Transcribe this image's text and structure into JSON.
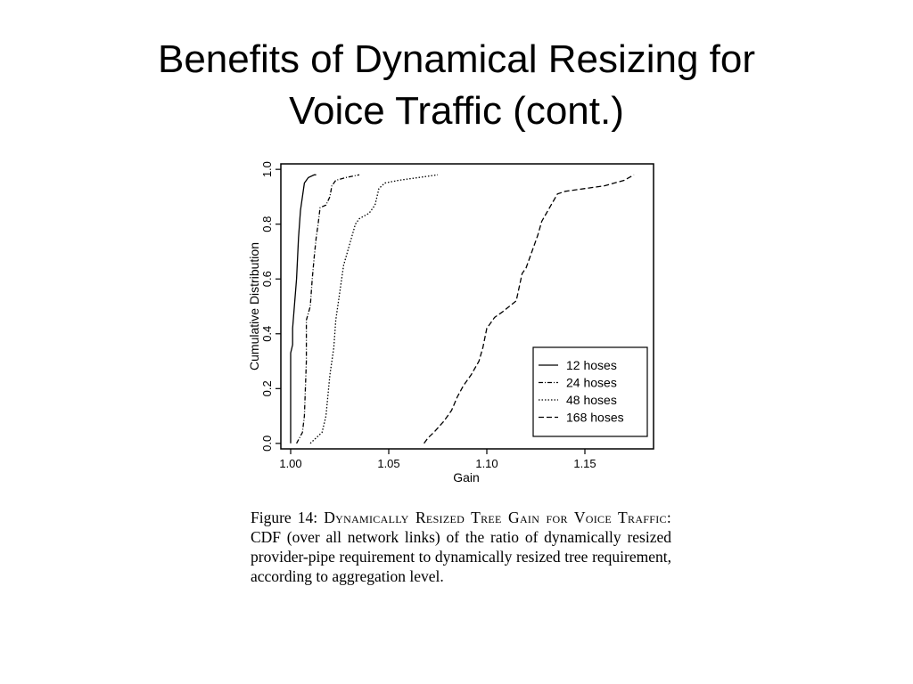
{
  "slide": {
    "title_line1": "Benefits of Dynamical Resizing for",
    "title_line2": "Voice Traffic (cont.)"
  },
  "caption": {
    "label": "Figure 14:",
    "heading": "Dynamically Resized Tree Gain for Voice Traffic:",
    "body": "CDF (over all network links) of the ratio of dynamically resized provider-pipe requirement to dynamically resized tree requirement, according to aggregation level."
  },
  "chart_data": {
    "type": "line",
    "xlabel": "Gain",
    "ylabel": "Cumulative Distribution",
    "xlim": [
      0.995,
      1.185
    ],
    "ylim": [
      -0.02,
      1.02
    ],
    "xticks": [
      "1.00",
      "1.05",
      "1.10",
      "1.15"
    ],
    "yticks": [
      "0.0",
      "0.2",
      "0.4",
      "0.6",
      "0.8",
      "1.0"
    ],
    "grid": false,
    "legend": "bottom-right",
    "series": [
      {
        "name": "12 hoses",
        "dash": "solid",
        "points": [
          [
            1.0,
            0.0
          ],
          [
            1.0,
            0.33
          ],
          [
            1.001,
            0.36
          ],
          [
            1.001,
            0.42
          ],
          [
            1.003,
            0.6
          ],
          [
            1.004,
            0.75
          ],
          [
            1.005,
            0.85
          ],
          [
            1.006,
            0.9
          ],
          [
            1.007,
            0.95
          ],
          [
            1.009,
            0.97
          ],
          [
            1.012,
            0.98
          ],
          [
            1.013,
            0.98
          ]
        ]
      },
      {
        "name": "24 hoses",
        "dash": "dashdot",
        "points": [
          [
            1.003,
            0.0
          ],
          [
            1.006,
            0.04
          ],
          [
            1.007,
            0.1
          ],
          [
            1.008,
            0.3
          ],
          [
            1.008,
            0.45
          ],
          [
            1.01,
            0.5
          ],
          [
            1.011,
            0.6
          ],
          [
            1.012,
            0.68
          ],
          [
            1.013,
            0.75
          ],
          [
            1.014,
            0.8
          ],
          [
            1.015,
            0.86
          ],
          [
            1.018,
            0.87
          ],
          [
            1.02,
            0.9
          ],
          [
            1.021,
            0.94
          ],
          [
            1.023,
            0.96
          ],
          [
            1.028,
            0.97
          ],
          [
            1.035,
            0.98
          ]
        ]
      },
      {
        "name": "48 hoses",
        "dash": "dotted",
        "points": [
          [
            1.01,
            0.0
          ],
          [
            1.016,
            0.04
          ],
          [
            1.018,
            0.1
          ],
          [
            1.02,
            0.25
          ],
          [
            1.022,
            0.35
          ],
          [
            1.023,
            0.45
          ],
          [
            1.025,
            0.55
          ],
          [
            1.027,
            0.65
          ],
          [
            1.031,
            0.75
          ],
          [
            1.033,
            0.8
          ],
          [
            1.035,
            0.82
          ],
          [
            1.04,
            0.84
          ],
          [
            1.043,
            0.87
          ],
          [
            1.045,
            0.93
          ],
          [
            1.048,
            0.95
          ],
          [
            1.055,
            0.96
          ],
          [
            1.065,
            0.97
          ],
          [
            1.075,
            0.98
          ]
        ]
      },
      {
        "name": "168 hoses",
        "dash": "dashed",
        "points": [
          [
            1.068,
            0.0
          ],
          [
            1.07,
            0.02
          ],
          [
            1.073,
            0.04
          ],
          [
            1.078,
            0.08
          ],
          [
            1.082,
            0.12
          ],
          [
            1.085,
            0.17
          ],
          [
            1.088,
            0.21
          ],
          [
            1.092,
            0.25
          ],
          [
            1.096,
            0.3
          ],
          [
            1.098,
            0.35
          ],
          [
            1.1,
            0.42
          ],
          [
            1.104,
            0.46
          ],
          [
            1.108,
            0.48
          ],
          [
            1.115,
            0.52
          ],
          [
            1.118,
            0.62
          ],
          [
            1.12,
            0.64
          ],
          [
            1.123,
            0.7
          ],
          [
            1.126,
            0.76
          ],
          [
            1.128,
            0.81
          ],
          [
            1.132,
            0.86
          ],
          [
            1.136,
            0.91
          ],
          [
            1.14,
            0.92
          ],
          [
            1.15,
            0.93
          ],
          [
            1.16,
            0.94
          ],
          [
            1.17,
            0.96
          ],
          [
            1.175,
            0.98
          ]
        ]
      }
    ]
  }
}
